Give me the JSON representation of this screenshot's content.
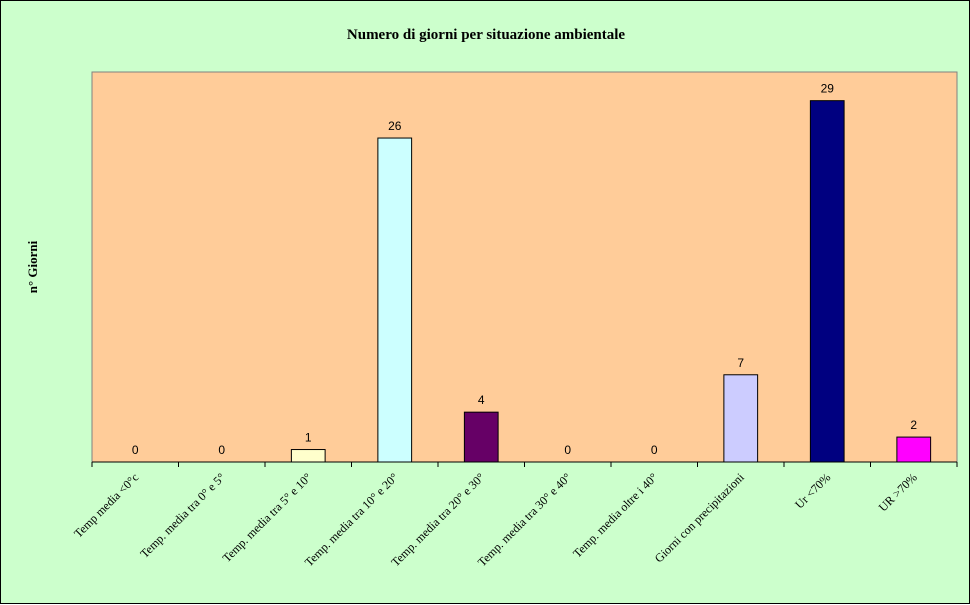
{
  "chart_data": {
    "type": "bar",
    "title": "Numero di giorni per situazione ambientale",
    "xlabel": "",
    "ylabel": "n° Giorni",
    "categories": [
      "Temp media <0°c",
      "Temp. media tra 0° e 5°",
      "Temp. media tra 5° e 10°",
      "Temp. media tra 10° e 20°",
      "Temp. media tra 20° e 30°",
      "Temp. media tra 30° e 40°",
      "Temp. media oltre i 40°",
      "Giorni con precipitazioni",
      "Ur  <70%",
      "UR >70%"
    ],
    "values": [
      0,
      0,
      1,
      26,
      4,
      0,
      0,
      7,
      29,
      2
    ],
    "bar_colors": [
      "#ffffcc",
      "#ffffcc",
      "#ffffcc",
      "#ccffff",
      "#660066",
      "#ffffcc",
      "#ffffcc",
      "#ccccff",
      "#000080",
      "#ff00ff"
    ],
    "ylim": [
      0,
      31.3
    ],
    "grid": false,
    "legend": "none",
    "background": {
      "chart_area": "#ccffcc",
      "plot_area": "#ffcc99"
    }
  }
}
